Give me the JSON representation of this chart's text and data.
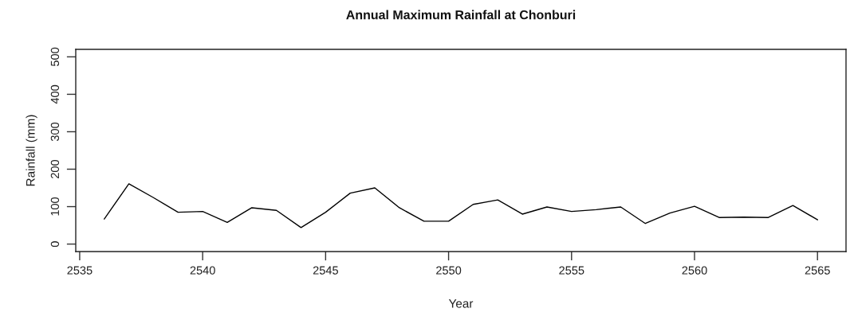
{
  "chart_data": {
    "type": "line",
    "title": "Annual Maximum Rainfall at Chonburi",
    "xlabel": "Year",
    "ylabel": "Rainfall (mm)",
    "x": [
      2536,
      2537,
      2538,
      2539,
      2540,
      2541,
      2542,
      2543,
      2544,
      2545,
      2546,
      2547,
      2548,
      2549,
      2550,
      2551,
      2552,
      2553,
      2554,
      2555,
      2556,
      2557,
      2558,
      2559,
      2560,
      2561,
      2562,
      2563,
      2564,
      2565
    ],
    "series": [
      {
        "color": "#000000",
        "values": [
          67,
          161,
          124,
          85,
          87,
          58,
          97,
          90,
          44,
          85,
          136,
          150,
          97,
          61,
          61,
          106,
          118,
          80,
          99,
          87,
          92,
          99,
          55,
          83,
          101,
          71,
          72,
          71,
          103,
          65
        ]
      }
    ],
    "xlim": [
      2534.84,
      2566.16
    ],
    "xticks": [
      2535,
      2540,
      2545,
      2550,
      2555,
      2560,
      2565
    ],
    "ylim": [
      -20,
      520
    ],
    "yticks": [
      0,
      100,
      200,
      300,
      400,
      500
    ],
    "grid": false,
    "marker": "none",
    "line_style": "solid"
  }
}
